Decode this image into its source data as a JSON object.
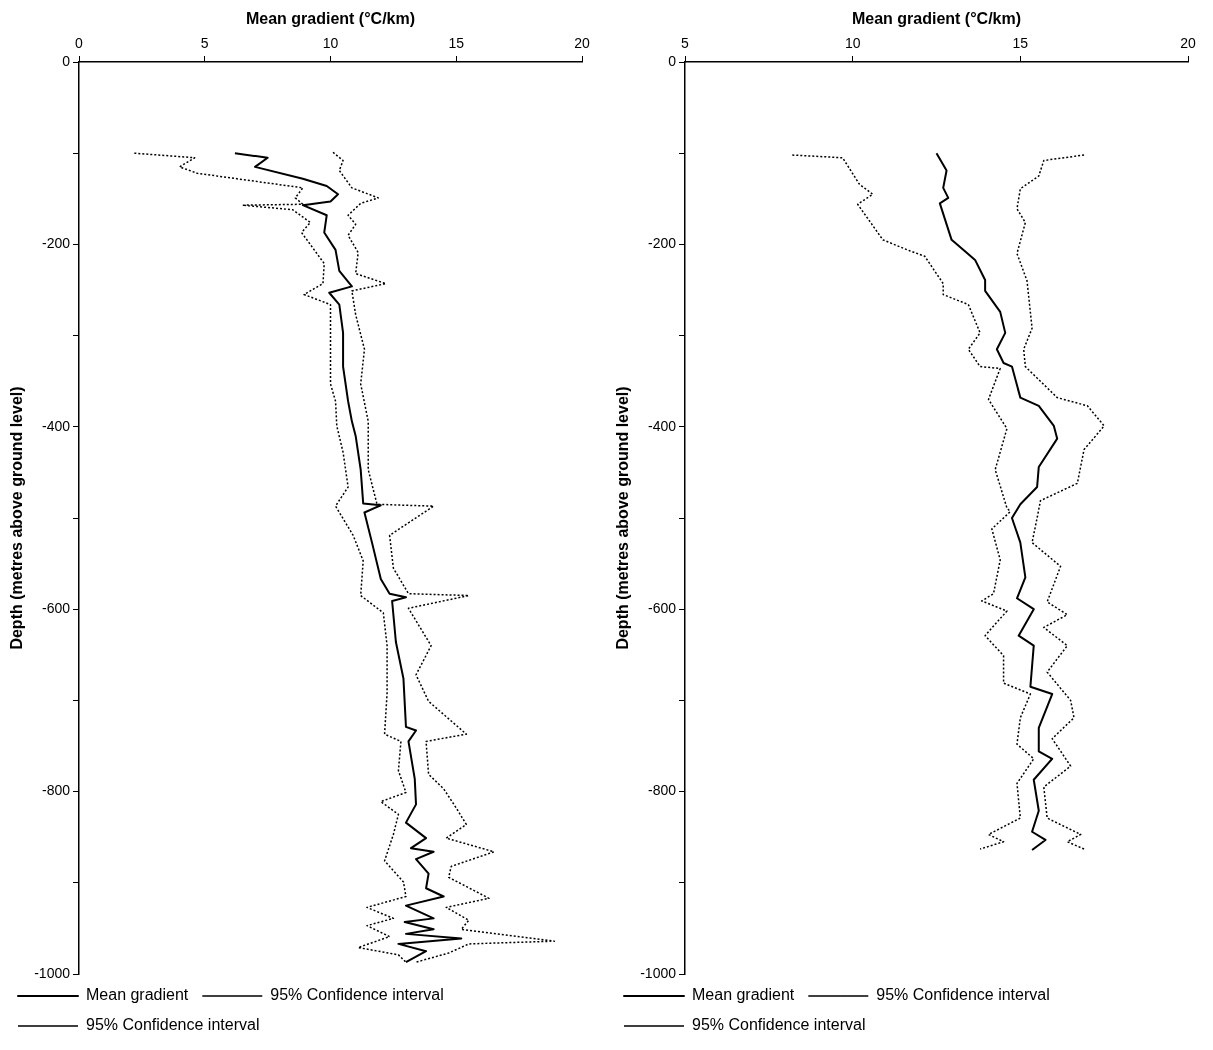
{
  "chart_data": [
    {
      "type": "line",
      "xlabel": "Mean gradient (°C/km)",
      "ylabel": "Depth (metres above ground level)",
      "xlim": [
        0,
        20
      ],
      "xticks": [
        0,
        5,
        10,
        15,
        20
      ],
      "ylim": [
        -1000,
        0
      ],
      "yticks": [
        -1000,
        {
          "value": -900,
          "label": null
        },
        -800,
        {
          "value": -700,
          "label": null
        },
        -600,
        {
          "value": -500,
          "label": null
        },
        -400,
        {
          "value": -300,
          "label": null
        },
        -200,
        {
          "value": -100,
          "label": null
        },
        0
      ],
      "grid": false,
      "legend": "bottom",
      "series": [
        {
          "name": "Mean gradient",
          "color": "#000000",
          "line_style": "solid",
          "x": [
            6.2,
            7.5,
            7.0,
            8.9,
            9.85,
            10.3,
            10.0,
            8.9,
            9.85,
            9.75,
            10.2,
            10.35,
            10.85,
            9.95,
            10.35,
            10.5,
            10.5,
            10.7,
            10.85,
            11.0,
            11.2,
            11.3,
            12.0,
            11.35,
            11.65,
            12.0,
            12.35,
            13.0,
            12.45,
            12.6,
            12.9,
            13.0,
            13.4,
            13.1,
            13.35,
            13.4,
            13.0,
            13.8,
            13.2,
            14.1,
            13.4,
            13.9,
            13.8,
            14.5,
            13.0,
            14.1,
            12.95,
            14.1,
            13.0,
            15.2,
            12.7,
            13.8,
            13.0
          ],
          "values": [
            -100,
            -105,
            -115,
            -128,
            -136,
            -145,
            -153,
            -157,
            -168,
            -187,
            -206,
            -229,
            -246,
            -253,
            -266,
            -297,
            -334,
            -372,
            -394,
            -410,
            -447,
            -484,
            -486,
            -494,
            -527,
            -567,
            -583,
            -587,
            -591,
            -636,
            -676,
            -729,
            -733,
            -745,
            -786,
            -814,
            -834,
            -851,
            -862,
            -866,
            -874,
            -890,
            -906,
            -915,
            -925,
            -939,
            -943,
            -951,
            -956,
            -961,
            -967,
            -975,
            -987
          ]
        },
        {
          "name": "95% Confidence interval",
          "color": "#000000",
          "line_style": "dotted",
          "x": [
            10.1,
            10.5,
            10.35,
            10.85,
            11.9,
            11.2,
            10.7,
            11.0,
            10.7,
            11.1,
            11.0,
            12.2,
            10.85,
            11.0,
            11.35,
            11.2,
            11.5,
            11.5,
            11.85,
            14.1,
            12.35,
            12.5,
            13.1,
            15.5,
            13.1,
            14.0,
            13.4,
            13.9,
            15.4,
            13.8,
            13.9,
            14.5,
            15.0,
            15.4,
            14.6,
            16.5,
            14.8,
            14.7,
            16.3,
            14.6,
            15.5,
            15.2,
            18.9,
            15.5,
            14.7,
            13.4
          ],
          "values": [
            -99,
            -108,
            -119,
            -138,
            -149,
            -155,
            -168,
            -178,
            -190,
            -209,
            -232,
            -243,
            -251,
            -277,
            -315,
            -353,
            -394,
            -447,
            -485,
            -487,
            -519,
            -555,
            -583,
            -585,
            -599,
            -640,
            -672,
            -701,
            -737,
            -745,
            -781,
            -797,
            -818,
            -836,
            -851,
            -866,
            -882,
            -894,
            -917,
            -927,
            -941,
            -951,
            -964,
            -967,
            -977,
            -987
          ]
        },
        {
          "name": "95% Confidence interval",
          "color": "#000000",
          "line_style": "dotted",
          "x": [
            2.2,
            4.6,
            4.0,
            4.7,
            8.9,
            8.6,
            8.9,
            6.5,
            8.5,
            9.2,
            8.85,
            9.75,
            9.7,
            8.95,
            10.0,
            10.0,
            10.0,
            10.2,
            10.25,
            10.5,
            10.7,
            10.2,
            10.9,
            11.3,
            11.2,
            12.1,
            12.25,
            12.25,
            12.15,
            12.8,
            12.7,
            13.0,
            12.0,
            12.7,
            12.5,
            12.15,
            12.9,
            13.0,
            11.45,
            12.5,
            11.45,
            12.35,
            11.1,
            12.7,
            13.0
          ],
          "values": [
            -100,
            -105,
            -115,
            -122,
            -138,
            -149,
            -156,
            -157,
            -162,
            -176,
            -187,
            -221,
            -243,
            -255,
            -266,
            -297,
            -353,
            -372,
            -399,
            -428,
            -466,
            -487,
            -519,
            -547,
            -585,
            -604,
            -640,
            -692,
            -737,
            -745,
            -777,
            -801,
            -811,
            -825,
            -847,
            -876,
            -899,
            -915,
            -927,
            -939,
            -947,
            -959,
            -971,
            -979,
            -987
          ]
        }
      ]
    },
    {
      "type": "line",
      "xlabel": "Mean gradient (°C/km)",
      "ylabel": "Depth (metres above ground level)",
      "xlim": [
        5,
        20
      ],
      "xticks": [
        5,
        10,
        15,
        20
      ],
      "ylim": [
        -1000,
        0
      ],
      "yticks": [
        -1000,
        {
          "value": -900,
          "label": null
        },
        -800,
        {
          "value": -700,
          "label": null
        },
        -600,
        {
          "value": -500,
          "label": null
        },
        -400,
        {
          "value": -300,
          "label": null
        },
        -200,
        {
          "value": -100,
          "label": null
        },
        0
      ],
      "grid": false,
      "legend": "bottom",
      "series": [
        {
          "name": "Mean gradient",
          "color": "#000000",
          "line_style": "solid",
          "x": [
            12.5,
            12.8,
            12.7,
            12.85,
            12.6,
            12.95,
            13.65,
            13.95,
            13.95,
            14.4,
            14.55,
            14.3,
            14.5,
            14.75,
            15.0,
            15.55,
            16.0,
            16.1,
            15.55,
            15.5,
            15.0,
            14.75,
            15.0,
            15.15,
            14.9,
            15.4,
            14.95,
            15.4,
            15.3,
            15.95,
            15.55,
            15.55,
            15.95,
            15.4,
            15.55,
            15.35,
            15.75,
            15.35
          ],
          "values": [
            -100,
            -119,
            -138,
            -149,
            -155,
            -195,
            -217,
            -239,
            -251,
            -274,
            -297,
            -315,
            -330,
            -334,
            -368,
            -377,
            -399,
            -413,
            -444,
            -466,
            -485,
            -500,
            -527,
            -565,
            -588,
            -600,
            -629,
            -640,
            -685,
            -693,
            -730,
            -756,
            -764,
            -787,
            -821,
            -844,
            -853,
            -864
          ]
        },
        {
          "name": "95% Confidence interval",
          "color": "#000000",
          "line_style": "dotted",
          "x": [
            16.9,
            15.7,
            15.55,
            15.0,
            14.9,
            15.15,
            14.9,
            15.2,
            15.35,
            15.1,
            15.15,
            16.1,
            17.0,
            17.5,
            16.9,
            16.7,
            15.6,
            15.5,
            15.35,
            16.2,
            15.8,
            16.4,
            15.7,
            16.4,
            15.8,
            16.5,
            16.6,
            15.95,
            16.5,
            15.7,
            15.8,
            16.8,
            16.4,
            16.9
          ],
          "values": [
            -102,
            -108,
            -125,
            -139,
            -161,
            -176,
            -210,
            -240,
            -292,
            -315,
            -334,
            -368,
            -377,
            -399,
            -425,
            -462,
            -481,
            -500,
            -527,
            -553,
            -592,
            -606,
            -620,
            -640,
            -669,
            -700,
            -719,
            -742,
            -772,
            -795,
            -829,
            -847,
            -855,
            -863
          ]
        },
        {
          "name": "95% Confidence interval",
          "color": "#000000",
          "line_style": "dotted",
          "x": [
            8.2,
            9.7,
            10.2,
            10.6,
            10.15,
            10.9,
            11.7,
            12.15,
            12.7,
            12.7,
            13.45,
            13.8,
            13.45,
            13.8,
            14.4,
            14.05,
            14.6,
            14.25,
            14.6,
            14.7,
            14.15,
            14.4,
            14.2,
            13.85,
            14.6,
            13.95,
            14.5,
            14.5,
            15.3,
            15.0,
            14.9,
            15.4,
            14.9,
            15.0,
            14.05,
            14.5,
            13.8
          ],
          "values": [
            -102,
            -105,
            -134,
            -145,
            -156,
            -195,
            -207,
            -213,
            -243,
            -255,
            -266,
            -297,
            -315,
            -334,
            -336,
            -370,
            -402,
            -447,
            -489,
            -493,
            -512,
            -546,
            -583,
            -591,
            -602,
            -629,
            -651,
            -681,
            -693,
            -719,
            -748,
            -764,
            -791,
            -829,
            -847,
            -855,
            -863
          ]
        }
      ]
    }
  ]
}
